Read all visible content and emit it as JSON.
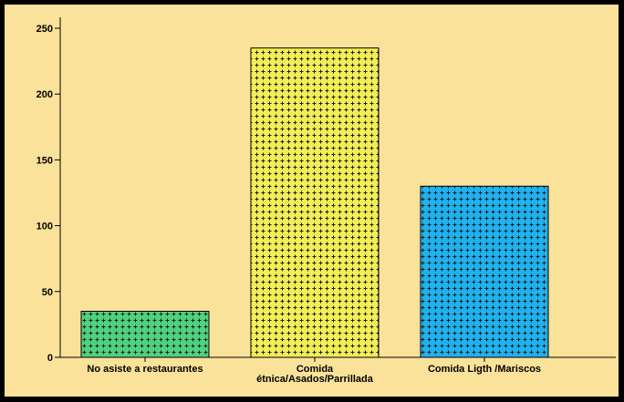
{
  "chart_data": {
    "type": "bar",
    "title": "",
    "xlabel": "",
    "ylabel": "",
    "categories": [
      "No asiste a restaurantes",
      "Comida étnica/Asados/Parrillada",
      "Comida Ligth /Mariscos"
    ],
    "category_lines": [
      [
        "No asiste a restaurantes"
      ],
      [
        "Comida",
        "étnica/Asados/Parrillada"
      ],
      [
        "Comida Ligth /Mariscos"
      ]
    ],
    "values": [
      35,
      235,
      130
    ],
    "colors": [
      "#4fd27f",
      "#f2ee57",
      "#1fb2ef"
    ],
    "pattern": "crosshatch-plus",
    "ylim": [
      0,
      250
    ],
    "yticks": [
      0,
      50,
      100,
      150,
      200,
      250
    ],
    "grid": false,
    "background": "#fbe29a"
  }
}
